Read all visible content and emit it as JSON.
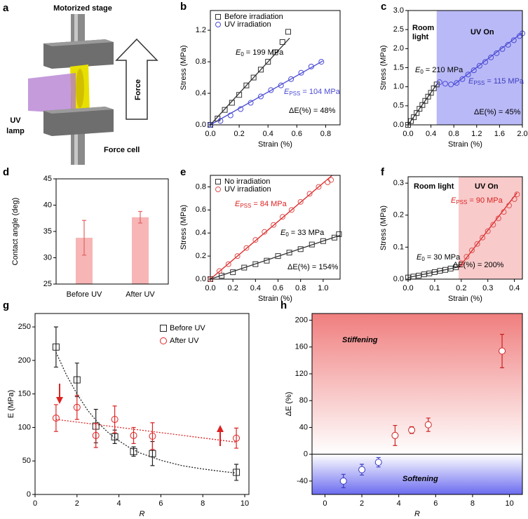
{
  "diagram": {
    "letter": "a",
    "stage": "Motorized stage",
    "lamp": [
      "UV",
      "lamp"
    ],
    "force": "Force",
    "cell": "Force cell"
  },
  "chart_data": [
    {
      "type": "scatter",
      "label": "b",
      "xlabel": "Strain (%)",
      "ylabel": "Stress (MPa)",
      "xlim": [
        0,
        0.9
      ],
      "ylim": [
        0,
        1.45
      ],
      "xticks": [
        {
          "value": 0,
          "label": "0.0"
        },
        {
          "value": 0.2,
          "label": "0.2"
        },
        {
          "value": 0.4,
          "label": "0.4"
        },
        {
          "value": 0.6,
          "label": "0.6"
        },
        {
          "value": 0.8,
          "label": "0.8"
        }
      ],
      "yticks": [
        {
          "value": 0,
          "label": "0.0"
        },
        {
          "value": 0.4,
          "label": "0.4"
        },
        {
          "value": 0.8,
          "label": "0.8"
        },
        {
          "value": 1.2,
          "label": "1.2"
        }
      ],
      "legend": "upper left",
      "series": [
        {
          "name": "Before irradiation",
          "color": "#333333",
          "marker": "square",
          "x": [
            0,
            0.05,
            0.1,
            0.15,
            0.2,
            0.25,
            0.3,
            0.35,
            0.4,
            0.45,
            0.5,
            0.54
          ],
          "values": [
            0,
            0.08,
            0.19,
            0.28,
            0.38,
            0.5,
            0.6,
            0.7,
            0.8,
            0.92,
            1.05,
            1.18
          ]
        },
        {
          "name": "UV irradiation",
          "color": "#4b4bd6",
          "marker": "circle",
          "x": [
            0,
            0.07,
            0.14,
            0.21,
            0.28,
            0.35,
            0.42,
            0.49,
            0.56,
            0.63,
            0.7,
            0.77
          ],
          "values": [
            0,
            0.05,
            0.12,
            0.2,
            0.28,
            0.36,
            0.44,
            0.5,
            0.58,
            0.66,
            0.74,
            0.8
          ]
        }
      ],
      "fit_lines": [
        {
          "color": "#333333",
          "style": "solid",
          "x": [
            0,
            0.55
          ],
          "values": [
            0,
            1.1
          ]
        },
        {
          "color": "#4b4bd6",
          "style": "solid",
          "x": [
            0,
            0.78
          ],
          "values": [
            0,
            0.81
          ]
        }
      ],
      "annotations": [
        {
          "symbol": "E",
          "sub": "0",
          "text": "= 199 MPa",
          "color": "#000000"
        },
        {
          "symbol": "E",
          "sub": "PSS",
          "text": "= 104 MPa",
          "color": "#4b4bd6"
        },
        {
          "text": "ΔE(%) = 48%",
          "color": "#000000"
        }
      ]
    },
    {
      "type": "scatter",
      "label": "c",
      "xlabel": "Strain (%)",
      "ylabel": "Stress (MPa)",
      "xlim": [
        0,
        2.0
      ],
      "ylim": [
        0,
        3.0
      ],
      "xticks": [
        {
          "value": 0,
          "label": "0.0"
        },
        {
          "value": 0.4,
          "label": "0.4"
        },
        {
          "value": 0.8,
          "label": "0.8"
        },
        {
          "value": 1.2,
          "label": "1.2"
        },
        {
          "value": 1.6,
          "label": "1.6"
        },
        {
          "value": 2.0,
          "label": "2.0"
        }
      ],
      "yticks": [
        {
          "value": 0,
          "label": "0.0"
        },
        {
          "value": 0.5,
          "label": "0.5"
        },
        {
          "value": 1.0,
          "label": "1.0"
        },
        {
          "value": 1.5,
          "label": "1.5"
        },
        {
          "value": 2.0,
          "label": "2.0"
        },
        {
          "value": 2.5,
          "label": "2.5"
        },
        {
          "value": 3.0,
          "label": "3.0"
        }
      ],
      "shaded_region": {
        "x": [
          0.5,
          2.0
        ],
        "color": "#b9b9f7"
      },
      "series": [
        {
          "color": "#333333",
          "marker": "square",
          "x": [
            0,
            0.05,
            0.1,
            0.15,
            0.2,
            0.25,
            0.3,
            0.35,
            0.4,
            0.45,
            0.5
          ],
          "values": [
            0,
            0.1,
            0.2,
            0.31,
            0.42,
            0.52,
            0.63,
            0.74,
            0.84,
            0.96,
            1.06
          ]
        },
        {
          "color": "#4b4bd6",
          "marker": "circle",
          "x": [
            0.55,
            0.65,
            0.75,
            0.85,
            0.95,
            1.05,
            1.15,
            1.25,
            1.35,
            1.45,
            1.55,
            1.65,
            1.75,
            1.85,
            1.95,
            2.0
          ],
          "values": [
            1.12,
            1.08,
            1.06,
            1.1,
            1.2,
            1.32,
            1.43,
            1.55,
            1.65,
            1.77,
            1.88,
            1.99,
            2.1,
            2.22,
            2.33,
            2.4
          ]
        }
      ],
      "fit_lines": [
        {
          "color": "#333333",
          "style": "solid",
          "x": [
            0,
            0.52
          ],
          "values": [
            0,
            1.1
          ]
        },
        {
          "color": "#4b4bd6",
          "style": "solid",
          "x": [
            0.8,
            2.0
          ],
          "values": [
            1.05,
            2.42
          ]
        }
      ],
      "annotations": [
        {
          "lines": [
            "Room",
            "light"
          ],
          "color": "#000000"
        },
        {
          "text": "UV On",
          "color": "#ffffff"
        },
        {
          "symbol": "E",
          "sub": "0",
          "text": "= 210 MPa",
          "color": "#000000"
        },
        {
          "symbol": "E",
          "sub": "PSS",
          "text": "= 115 MPa",
          "color": "#3c3cc0"
        },
        {
          "text": "ΔE(%) = 45%",
          "color": "#000000"
        }
      ]
    },
    {
      "type": "bar",
      "label": "d",
      "ylabel": "Contact angle (deg)",
      "categories": [
        "Before UV",
        "After UV"
      ],
      "values": [
        33.8,
        37.7
      ],
      "errors": [
        3.3,
        1.1
      ],
      "color": "#f7b5b5",
      "error_color": "#e26464",
      "ylim": [
        25,
        45
      ],
      "yticks": [
        25,
        30,
        35,
        40,
        45
      ]
    },
    {
      "type": "scatter",
      "label": "e",
      "xlabel": "Strain (%)",
      "ylabel": "Stress (MPa)",
      "xlim": [
        0,
        1.15
      ],
      "ylim": [
        0,
        0.9
      ],
      "xticks": [
        {
          "value": 0,
          "label": "0.0"
        },
        {
          "value": 0.2,
          "label": "0.2"
        },
        {
          "value": 0.4,
          "label": "0.4"
        },
        {
          "value": 0.6,
          "label": "0.6"
        },
        {
          "value": 0.8,
          "label": "0.8"
        },
        {
          "value": 1.0,
          "label": "1.0"
        }
      ],
      "yticks": [
        {
          "value": 0,
          "label": "0.0"
        },
        {
          "value": 0.2,
          "label": "0.2"
        },
        {
          "value": 0.4,
          "label": "0.4"
        },
        {
          "value": 0.6,
          "label": "0.6"
        },
        {
          "value": 0.8,
          "label": "0.8"
        }
      ],
      "legend": "upper left",
      "series": [
        {
          "name": "No irradiation",
          "color": "#333333",
          "marker": "square",
          "x": [
            0,
            0.1,
            0.2,
            0.3,
            0.4,
            0.5,
            0.6,
            0.7,
            0.8,
            0.9,
            1.0,
            1.1,
            1.14
          ],
          "values": [
            0,
            0.03,
            0.06,
            0.1,
            0.13,
            0.16,
            0.2,
            0.23,
            0.26,
            0.3,
            0.33,
            0.36,
            0.39
          ]
        },
        {
          "name": "UV irradiation",
          "color": "#e05050",
          "marker": "circle",
          "x": [
            0,
            0.08,
            0.16,
            0.24,
            0.32,
            0.4,
            0.48,
            0.56,
            0.64,
            0.72,
            0.8,
            0.88,
            0.96,
            1.04,
            1.07
          ],
          "values": [
            0,
            0.07,
            0.13,
            0.2,
            0.27,
            0.34,
            0.41,
            0.47,
            0.54,
            0.6,
            0.67,
            0.74,
            0.8,
            0.84,
            0.86
          ]
        }
      ],
      "fit_lines": [
        {
          "color": "#dd2222",
          "style": "solid",
          "x": [
            0,
            1.08
          ],
          "values": [
            0,
            0.9
          ]
        },
        {
          "color": "#333333",
          "style": "solid",
          "x": [
            0,
            1.15
          ],
          "values": [
            0,
            0.38
          ]
        }
      ],
      "annotations": [
        {
          "symbol": "E",
          "sub": "PSS",
          "text": "= 84 MPa",
          "color": "#dd2222"
        },
        {
          "symbol": "E",
          "sub": "0",
          "text": "= 33 MPa",
          "color": "#000000"
        },
        {
          "text": "ΔE(%) = 154%",
          "color": "#000000"
        }
      ]
    },
    {
      "type": "scatter",
      "label": "f",
      "xlabel": "Strain (%)",
      "ylabel": "Stress (MPa)",
      "xlim": [
        0,
        0.43
      ],
      "ylim": [
        0,
        0.32
      ],
      "xticks": [
        {
          "value": 0,
          "label": "0.0"
        },
        {
          "value": 0.1,
          "label": "0.1"
        },
        {
          "value": 0.2,
          "label": "0.2"
        },
        {
          "value": 0.3,
          "label": "0.3"
        },
        {
          "value": 0.4,
          "label": "0.4"
        }
      ],
      "yticks": [
        {
          "value": 0,
          "label": "0.0"
        },
        {
          "value": 0.1,
          "label": "0.1"
        },
        {
          "value": 0.2,
          "label": "0.2"
        },
        {
          "value": 0.3,
          "label": "0.3"
        }
      ],
      "shaded_region": {
        "x": [
          0.19,
          0.43
        ],
        "color": "#f8caca"
      },
      "series": [
        {
          "color": "#333333",
          "marker": "square",
          "x": [
            0,
            0.02,
            0.04,
            0.06,
            0.08,
            0.1,
            0.12,
            0.14,
            0.16,
            0.18
          ],
          "values": [
            0.005,
            0.008,
            0.011,
            0.015,
            0.018,
            0.022,
            0.026,
            0.029,
            0.033,
            0.037
          ]
        },
        {
          "color": "#e05050",
          "marker": "circle",
          "x": [
            0.2,
            0.22,
            0.24,
            0.26,
            0.28,
            0.3,
            0.32,
            0.34,
            0.36,
            0.38,
            0.4,
            0.41
          ],
          "values": [
            0.05,
            0.07,
            0.09,
            0.11,
            0.13,
            0.15,
            0.17,
            0.19,
            0.21,
            0.23,
            0.25,
            0.265
          ]
        }
      ],
      "fit_lines": [
        {
          "color": "#333333",
          "style": "solid",
          "x": [
            0,
            0.19
          ],
          "values": [
            0.005,
            0.038
          ]
        },
        {
          "color": "#dd2222",
          "style": "solid",
          "x": [
            0.19,
            0.41
          ],
          "values": [
            0.035,
            0.27
          ]
        }
      ],
      "annotations": [
        {
          "text": "Room light",
          "color": "#000000"
        },
        {
          "text": "UV On",
          "color": "#cc2222"
        },
        {
          "symbol": "E",
          "sub": "PSS",
          "text": "= 90 MPa",
          "color": "#dd2222"
        },
        {
          "symbol": "E",
          "sub": "0",
          "text": "= 30 MPa",
          "color": "#000000"
        },
        {
          "text": "ΔE(%) = 200%",
          "color": "#000000"
        }
      ]
    },
    {
      "type": "scatter",
      "label": "g",
      "xlabel": "R",
      "ylabel": "E (MPa)",
      "xlim": [
        0,
        10.2
      ],
      "ylim": [
        0,
        270
      ],
      "xticks": [
        0,
        2,
        4,
        6,
        8,
        10
      ],
      "yticks": [
        0,
        50,
        100,
        150,
        200,
        250
      ],
      "legend": "upper right",
      "series": [
        {
          "name": "Before UV",
          "color": "#222222",
          "marker": "square",
          "x": [
            1.0,
            2.0,
            2.9,
            3.8,
            4.7,
            5.6,
            9.6
          ],
          "values": [
            220,
            171,
            102,
            86,
            64,
            61,
            33
          ],
          "errors": [
            30,
            25,
            25,
            10,
            7,
            18,
            12
          ]
        },
        {
          "name": "After UV",
          "color": "#dd2222",
          "marker": "circle",
          "x": [
            1.0,
            2.0,
            2.9,
            3.8,
            4.7,
            5.6,
            9.6
          ],
          "values": [
            114,
            130,
            88,
            112,
            88,
            87,
            84
          ],
          "errors": [
            20,
            18,
            18,
            20,
            12,
            20,
            15
          ]
        }
      ],
      "fit_lines": [
        {
          "color": "#222222",
          "style": "dotted",
          "x": [
            1,
            1.5,
            2,
            2.5,
            3,
            3.5,
            4,
            4.5,
            5,
            6,
            7,
            8,
            9,
            9.6
          ],
          "values": [
            212,
            178,
            150,
            126,
            107,
            92,
            80,
            70,
            62,
            51,
            43,
            38,
            34,
            32
          ]
        },
        {
          "color": "#dd2222",
          "style": "dotted",
          "x": [
            1,
            9.6
          ],
          "values": [
            112,
            78
          ]
        }
      ]
    },
    {
      "type": "scatter",
      "label": "h",
      "xlabel": "R",
      "ylabel": "ΔE (%)",
      "xlim": [
        -0.7,
        10.7
      ],
      "ylim": [
        -60,
        210
      ],
      "xticks": [
        0,
        2,
        4,
        6,
        8,
        10
      ],
      "yticks": [
        -40,
        0,
        40,
        80,
        120,
        160,
        200
      ],
      "background_gradient": {
        "reference_line": 0,
        "above_color": "#f07e7e",
        "below_color": "#6b6bf0"
      },
      "series": [
        {
          "color": "#3b3bc0",
          "marker": "circle",
          "fill": "#ffffff",
          "x": [
            1.0,
            2.0,
            2.9
          ],
          "values": [
            -40,
            -23,
            -12
          ],
          "errors": [
            10,
            8,
            7
          ]
        },
        {
          "color": "#cc2222",
          "marker": "circle",
          "fill": "#ffffff",
          "x": [
            3.8,
            4.7,
            5.6,
            9.6
          ],
          "values": [
            28,
            36,
            44,
            154
          ],
          "errors": [
            15,
            5,
            10,
            25
          ]
        }
      ],
      "annotations": [
        {
          "text": "Stiffening",
          "color": "#cc2222"
        },
        {
          "text": "Softening",
          "color": "#2222aa"
        }
      ]
    }
  ]
}
